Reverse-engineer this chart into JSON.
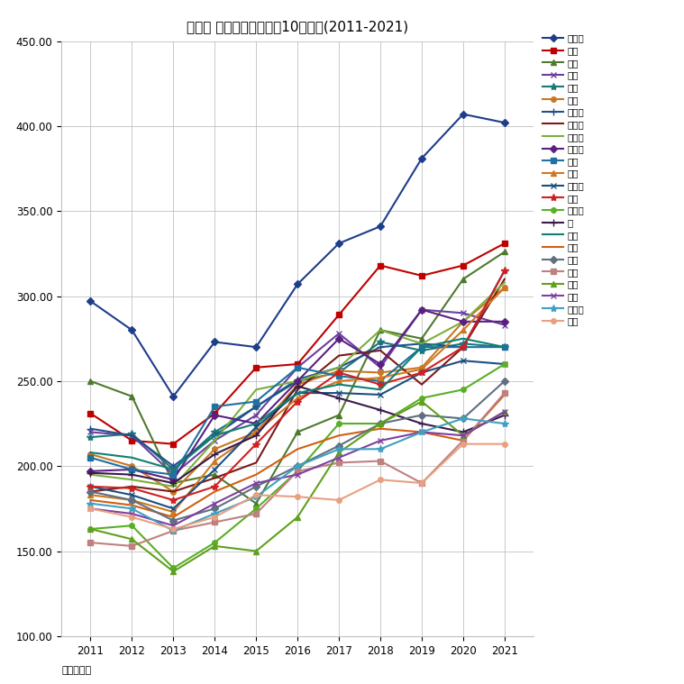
{
  "title": "台東区 マンション坪単価10年変遷(2011-2021)",
  "unit_label": "単位：万円",
  "years": [
    2011,
    2012,
    2013,
    2014,
    2015,
    2016,
    2017,
    2018,
    2019,
    2020,
    2021
  ],
  "ylim": [
    100.0,
    450.0
  ],
  "yticks": [
    100.0,
    150.0,
    200.0,
    250.0,
    300.0,
    350.0,
    400.0,
    450.0
  ],
  "series": [
    {
      "name": "池之端",
      "color": "#1F3D8C",
      "marker": "D",
      "markersize": 4,
      "linewidth": 1.5,
      "values": [
        297,
        280,
        241,
        273,
        270,
        307,
        331,
        341,
        381,
        407,
        402
      ]
    },
    {
      "name": "上野",
      "color": "#C00000",
      "marker": "s",
      "markersize": 4,
      "linewidth": 1.5,
      "values": [
        231,
        215,
        213,
        231,
        258,
        260,
        289,
        318,
        312,
        318,
        331
      ]
    },
    {
      "name": "台東",
      "color": "#4E7A2E",
      "marker": "^",
      "markersize": 4,
      "linewidth": 1.5,
      "values": [
        250,
        241,
        190,
        195,
        178,
        220,
        230,
        280,
        275,
        310,
        326
      ]
    },
    {
      "name": "三筋",
      "color": "#6B3FA0",
      "marker": "x",
      "markersize": 5,
      "linewidth": 1.5,
      "values": [
        220,
        218,
        195,
        215,
        230,
        258,
        278,
        258,
        292,
        290,
        283
      ]
    },
    {
      "name": "雷門",
      "color": "#1A7878",
      "marker": "*",
      "markersize": 6,
      "linewidth": 1.5,
      "values": [
        217,
        219,
        198,
        220,
        235,
        250,
        255,
        273,
        268,
        272,
        270
      ]
    },
    {
      "name": "蔵前",
      "color": "#C87820",
      "marker": "o",
      "markersize": 4,
      "linewidth": 1.5,
      "values": [
        207,
        200,
        185,
        210,
        220,
        248,
        256,
        255,
        258,
        285,
        305
      ]
    },
    {
      "name": "東上野",
      "color": "#244F8C",
      "marker": "+",
      "markersize": 6,
      "linewidth": 1.5,
      "values": [
        222,
        218,
        200,
        218,
        235,
        251,
        258,
        270,
        272,
        270,
        315
      ]
    },
    {
      "name": "元浅草",
      "color": "#7B1A1A",
      "marker": "None",
      "markersize": 4,
      "linewidth": 1.5,
      "values": [
        185,
        188,
        185,
        193,
        202,
        245,
        265,
        268,
        248,
        270,
        310
      ]
    },
    {
      "name": "浅草橋",
      "color": "#7BAF3E",
      "marker": "None",
      "markersize": 4,
      "linewidth": 1.5,
      "values": [
        195,
        192,
        188,
        215,
        245,
        250,
        258,
        280,
        272,
        285,
        308
      ]
    },
    {
      "name": "西浅草",
      "color": "#5A2080",
      "marker": "D",
      "markersize": 4,
      "linewidth": 1.5,
      "values": [
        197,
        198,
        192,
        230,
        225,
        250,
        275,
        260,
        292,
        285,
        285
      ]
    },
    {
      "name": "小島",
      "color": "#2070A0",
      "marker": "s",
      "markersize": 4,
      "linewidth": 1.5,
      "values": [
        205,
        198,
        195,
        235,
        238,
        258,
        253,
        250,
        270,
        270,
        270
      ]
    },
    {
      "name": "浅草",
      "color": "#D07820",
      "marker": "^",
      "markersize": 4,
      "linewidth": 1.5,
      "values": [
        183,
        180,
        173,
        203,
        220,
        240,
        250,
        252,
        257,
        280,
        305
      ]
    },
    {
      "name": "北上野",
      "color": "#1A5080",
      "marker": "x",
      "markersize": 5,
      "linewidth": 1.5,
      "values": [
        188,
        183,
        175,
        198,
        223,
        243,
        243,
        242,
        255,
        262,
        260
      ]
    },
    {
      "name": "入谷",
      "color": "#D02020",
      "marker": "*",
      "markersize": 6,
      "linewidth": 1.5,
      "values": [
        188,
        187,
        180,
        188,
        213,
        238,
        255,
        248,
        255,
        270,
        315
      ]
    },
    {
      "name": "松が谷",
      "color": "#5AAF25",
      "marker": "o",
      "markersize": 4,
      "linewidth": 1.5,
      "values": [
        163,
        165,
        140,
        155,
        175,
        197,
        225,
        225,
        240,
        245,
        260
      ]
    },
    {
      "name": "寿",
      "color": "#3A1A4A",
      "marker": "+",
      "markersize": 6,
      "linewidth": 1.5,
      "values": [
        196,
        195,
        190,
        207,
        218,
        247,
        240,
        233,
        225,
        220,
        230
      ]
    },
    {
      "name": "駒形",
      "color": "#108070",
      "marker": "None",
      "markersize": 4,
      "linewidth": 1.5,
      "values": [
        208,
        205,
        198,
        218,
        225,
        243,
        248,
        245,
        270,
        275,
        270
      ]
    },
    {
      "name": "下谷",
      "color": "#D06010",
      "marker": "None",
      "markersize": 4,
      "linewidth": 1.5,
      "values": [
        180,
        177,
        170,
        185,
        195,
        210,
        218,
        222,
        220,
        215,
        242
      ]
    },
    {
      "name": "根岸",
      "color": "#607080",
      "marker": "D",
      "markersize": 4,
      "linewidth": 1.5,
      "values": [
        185,
        180,
        168,
        175,
        188,
        200,
        212,
        225,
        230,
        228,
        250
      ]
    },
    {
      "name": "清川",
      "color": "#C08080",
      "marker": "s",
      "markersize": 4,
      "linewidth": 1.5,
      "values": [
        155,
        153,
        162,
        167,
        172,
        197,
        202,
        203,
        190,
        215,
        243
      ]
    },
    {
      "name": "千束",
      "color": "#60A020",
      "marker": "^",
      "markersize": 4,
      "linewidth": 1.5,
      "values": [
        163,
        157,
        138,
        153,
        150,
        170,
        208,
        225,
        238,
        218,
        232
      ]
    },
    {
      "name": "竜泉",
      "color": "#8040A0",
      "marker": "x",
      "markersize": 5,
      "linewidth": 1.5,
      "values": [
        175,
        172,
        165,
        178,
        190,
        195,
        205,
        215,
        220,
        218,
        232
      ]
    },
    {
      "name": "三ノ輪",
      "color": "#40A0C0",
      "marker": "*",
      "markersize": 6,
      "linewidth": 1.5,
      "values": [
        178,
        175,
        162,
        172,
        182,
        200,
        210,
        210,
        220,
        228,
        225
      ]
    },
    {
      "name": "今戸",
      "color": "#E8A080",
      "marker": "o",
      "markersize": 4,
      "linewidth": 1.5,
      "values": [
        175,
        170,
        163,
        170,
        183,
        182,
        180,
        192,
        190,
        213,
        213
      ]
    }
  ]
}
